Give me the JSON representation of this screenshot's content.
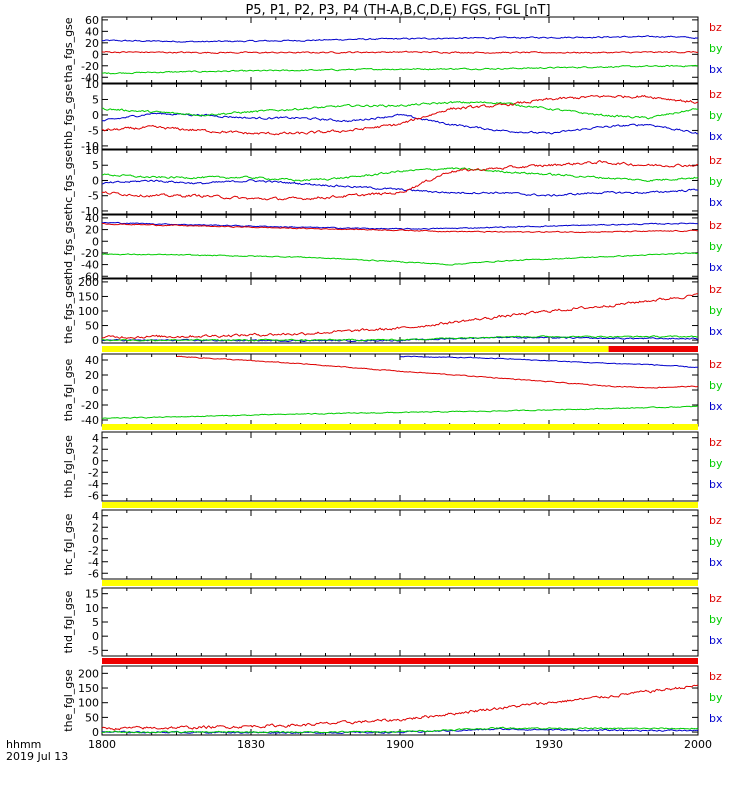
{
  "title": "P5, P1, P2, P3, P4 (TH-A,B,C,D,E) FGS, FGL [nT]",
  "time_axis": {
    "label_line1": "hhmm",
    "label_line2": "2019 Jul 13",
    "ticks": [
      "1800",
      "1830",
      "1900",
      "1930",
      "2000"
    ],
    "range_minutes": [
      0,
      120
    ]
  },
  "legend_labels": [
    "bz",
    "by",
    "bx"
  ],
  "colors": {
    "bx": "#0000cc",
    "by": "#00cc00",
    "bz": "#dd0000",
    "flag_yellow": "#ffff00",
    "flag_red": "#ee0000",
    "axis": "#000000"
  },
  "chart_data": [
    {
      "type": "line",
      "ylabel": "tha_fgs_gse",
      "ylim": [
        -50,
        65
      ],
      "yticks": [
        "60",
        "40",
        "20",
        "0",
        "-20",
        "-40"
      ],
      "ytick_values": [
        60,
        40,
        20,
        0,
        -20,
        -40
      ],
      "series": [
        {
          "name": "bx",
          "noise": 1,
          "points": [
            [
              0,
              24
            ],
            [
              20,
              22
            ],
            [
              40,
              24
            ],
            [
              50,
              26
            ],
            [
              70,
              28
            ],
            [
              85,
              29
            ],
            [
              100,
              30
            ],
            [
              115,
              31
            ],
            [
              120,
              28
            ]
          ]
        },
        {
          "name": "by",
          "noise": 1,
          "points": [
            [
              0,
              -33
            ],
            [
              20,
              -30
            ],
            [
              40,
              -28
            ],
            [
              55,
              -26
            ],
            [
              80,
              -25
            ],
            [
              100,
              -22
            ],
            [
              120,
              -20
            ]
          ]
        },
        {
          "name": "bz",
          "noise": 1,
          "points": [
            [
              0,
              4
            ],
            [
              20,
              3
            ],
            [
              40,
              3
            ],
            [
              60,
              4
            ],
            [
              80,
              3
            ],
            [
              100,
              3
            ],
            [
              120,
              4
            ]
          ]
        }
      ]
    },
    {
      "type": "line",
      "ylabel": "thb_fgs_gse",
      "ylim": [
        -11,
        10
      ],
      "yticks": [
        "10",
        "5",
        "0",
        "-5",
        "-10"
      ],
      "ytick_values": [
        10,
        5,
        0,
        -5,
        -10
      ],
      "series": [
        {
          "name": "bx",
          "noise": 1.5,
          "points": [
            [
              0,
              -2
            ],
            [
              10,
              0.5
            ],
            [
              20,
              0
            ],
            [
              30,
              -1
            ],
            [
              40,
              -1
            ],
            [
              50,
              -2
            ],
            [
              60,
              0
            ],
            [
              70,
              -3
            ],
            [
              80,
              -5
            ],
            [
              90,
              -6
            ],
            [
              100,
              -4
            ],
            [
              110,
              -3
            ],
            [
              120,
              -6
            ]
          ]
        },
        {
          "name": "by",
          "noise": 1.5,
          "points": [
            [
              0,
              2
            ],
            [
              10,
              1
            ],
            [
              20,
              0
            ],
            [
              30,
              1
            ],
            [
              40,
              2
            ],
            [
              50,
              3
            ],
            [
              60,
              3
            ],
            [
              70,
              4
            ],
            [
              80,
              4
            ],
            [
              90,
              2
            ],
            [
              100,
              0
            ],
            [
              110,
              -1
            ],
            [
              120,
              2
            ]
          ]
        },
        {
          "name": "bz",
          "noise": 2,
          "points": [
            [
              0,
              -5
            ],
            [
              10,
              -4
            ],
            [
              20,
              -5
            ],
            [
              30,
              -6
            ],
            [
              40,
              -6
            ],
            [
              50,
              -5
            ],
            [
              60,
              -3
            ],
            [
              70,
              2
            ],
            [
              80,
              3
            ],
            [
              90,
              5
            ],
            [
              100,
              6
            ],
            [
              110,
              6
            ],
            [
              120,
              4
            ]
          ]
        }
      ]
    },
    {
      "type": "line",
      "ylabel": "thc_fgs_gse",
      "ylim": [
        -11,
        10
      ],
      "yticks": [
        "10",
        "5",
        "0",
        "-5",
        "-10"
      ],
      "ytick_values": [
        10,
        5,
        0,
        -5,
        -10
      ],
      "series": [
        {
          "name": "bx",
          "noise": 1.5,
          "points": [
            [
              0,
              -1
            ],
            [
              10,
              0
            ],
            [
              20,
              -1
            ],
            [
              30,
              0
            ],
            [
              40,
              -1
            ],
            [
              50,
              -2
            ],
            [
              60,
              -3
            ],
            [
              70,
              -4
            ],
            [
              80,
              -4
            ],
            [
              90,
              -5
            ],
            [
              100,
              -4
            ],
            [
              110,
              -4
            ],
            [
              120,
              -3
            ]
          ]
        },
        {
          "name": "by",
          "noise": 1.5,
          "points": [
            [
              0,
              2
            ],
            [
              10,
              1
            ],
            [
              20,
              1
            ],
            [
              30,
              1
            ],
            [
              40,
              0
            ],
            [
              50,
              1
            ],
            [
              60,
              3
            ],
            [
              70,
              4
            ],
            [
              80,
              3
            ],
            [
              90,
              2
            ],
            [
              100,
              1
            ],
            [
              110,
              0
            ],
            [
              120,
              1
            ]
          ]
        },
        {
          "name": "bz",
          "noise": 2,
          "points": [
            [
              0,
              -4
            ],
            [
              10,
              -5
            ],
            [
              20,
              -5
            ],
            [
              30,
              -6
            ],
            [
              40,
              -6
            ],
            [
              50,
              -5
            ],
            [
              60,
              -4
            ],
            [
              70,
              3
            ],
            [
              80,
              4
            ],
            [
              90,
              5
            ],
            [
              100,
              6
            ],
            [
              110,
              5
            ],
            [
              120,
              5
            ]
          ]
        }
      ]
    },
    {
      "type": "line",
      "ylabel": "thd_fgs_gse",
      "ylim": [
        -63,
        45
      ],
      "yticks": [
        "40",
        "20",
        "0",
        "-20",
        "-40",
        "-60"
      ],
      "ytick_values": [
        40,
        20,
        0,
        -20,
        -40,
        -60
      ],
      "series": [
        {
          "name": "bx",
          "noise": 0.8,
          "points": [
            [
              0,
              32
            ],
            [
              20,
              28
            ],
            [
              40,
              24
            ],
            [
              60,
              21
            ],
            [
              70,
              22
            ],
            [
              80,
              24
            ],
            [
              100,
              28
            ],
            [
              120,
              31
            ]
          ]
        },
        {
          "name": "by",
          "noise": 0.8,
          "points": [
            [
              0,
              -22
            ],
            [
              20,
              -24
            ],
            [
              40,
              -27
            ],
            [
              60,
              -35
            ],
            [
              70,
              -40
            ],
            [
              80,
              -34
            ],
            [
              100,
              -27
            ],
            [
              120,
              -20
            ]
          ]
        },
        {
          "name": "bz",
          "noise": 0.8,
          "points": [
            [
              0,
              30
            ],
            [
              20,
              26
            ],
            [
              40,
              22
            ],
            [
              60,
              19
            ],
            [
              70,
              17
            ],
            [
              80,
              16
            ],
            [
              100,
              16
            ],
            [
              120,
              18
            ]
          ]
        }
      ]
    },
    {
      "type": "line",
      "ylabel": "the_fgs_gse",
      "ylim": [
        -10,
        210
      ],
      "yticks": [
        "200",
        "150",
        "100",
        "50",
        "0"
      ],
      "ytick_values": [
        200,
        150,
        100,
        50,
        0
      ],
      "series": [
        {
          "name": "bx",
          "noise": 1,
          "points": [
            [
              0,
              0
            ],
            [
              40,
              -2
            ],
            [
              60,
              -1
            ],
            [
              80,
              10
            ],
            [
              100,
              6
            ],
            [
              120,
              5
            ]
          ]
        },
        {
          "name": "by",
          "noise": 1,
          "points": [
            [
              0,
              0
            ],
            [
              40,
              0
            ],
            [
              60,
              1
            ],
            [
              80,
              12
            ],
            [
              100,
              12
            ],
            [
              120,
              12
            ]
          ]
        },
        {
          "name": "bz",
          "noise": 2,
          "points": [
            [
              0,
              10
            ],
            [
              20,
              14
            ],
            [
              40,
              22
            ],
            [
              60,
              40
            ],
            [
              70,
              60
            ],
            [
              80,
              80
            ],
            [
              90,
              100
            ],
            [
              100,
              115
            ],
            [
              110,
              135
            ],
            [
              120,
              155
            ]
          ]
        }
      ]
    },
    {
      "type": "line",
      "ylabel": "tha_fgl_gse",
      "ylim": [
        -48,
        48
      ],
      "yticks": [
        "40",
        "20",
        "0",
        "-20",
        "-40"
      ],
      "ytick_values": [
        40,
        20,
        0,
        -20,
        -40
      ],
      "flag": {
        "segments": [
          {
            "start": 0,
            "end": 102,
            "color": "yellow"
          },
          {
            "start": 102,
            "end": 120,
            "color": "red"
          }
        ]
      },
      "series": [
        {
          "name": "bx",
          "noise": 0.6,
          "points": [
            [
              60,
              45
            ],
            [
              80,
              42
            ],
            [
              100,
              36
            ],
            [
              110,
              34
            ],
            [
              120,
              30
            ]
          ]
        },
        {
          "name": "by",
          "noise": 0.6,
          "points": [
            [
              0,
              -38
            ],
            [
              20,
              -35
            ],
            [
              40,
              -32
            ],
            [
              60,
              -30
            ],
            [
              80,
              -28
            ],
            [
              100,
              -25
            ],
            [
              120,
              -22
            ]
          ]
        },
        {
          "name": "bz",
          "noise": 0.6,
          "points": [
            [
              15,
              45
            ],
            [
              40,
              35
            ],
            [
              60,
              25
            ],
            [
              80,
              16
            ],
            [
              100,
              6
            ],
            [
              110,
              3
            ],
            [
              120,
              5
            ]
          ]
        }
      ]
    },
    {
      "type": "line",
      "ylabel": "thb_fgl_gse",
      "ylim": [
        -7,
        5
      ],
      "yticks": [
        "4",
        "2",
        "0",
        "-2",
        "-4",
        "-6"
      ],
      "ytick_values": [
        4,
        2,
        0,
        -2,
        -4,
        -6
      ],
      "flag": {
        "segments": [
          {
            "start": 0,
            "end": 120,
            "color": "yellow"
          }
        ]
      },
      "series": []
    },
    {
      "type": "line",
      "ylabel": "thc_fgl_gse",
      "ylim": [
        -7,
        5
      ],
      "yticks": [
        "4",
        "2",
        "0",
        "-2",
        "-4",
        "-6"
      ],
      "ytick_values": [
        4,
        2,
        0,
        -2,
        -4,
        -6
      ],
      "flag": {
        "segments": [
          {
            "start": 0,
            "end": 120,
            "color": "yellow"
          }
        ]
      },
      "series": []
    },
    {
      "type": "line",
      "ylabel": "thd_fgl_gse",
      "ylim": [
        -7,
        17
      ],
      "yticks": [
        "15",
        "10",
        "5",
        "0",
        "-5"
      ],
      "ytick_values": [
        15,
        10,
        5,
        0,
        -5
      ],
      "flag": {
        "segments": [
          {
            "start": 0,
            "end": 120,
            "color": "yellow"
          }
        ]
      },
      "series": []
    },
    {
      "type": "line",
      "ylabel": "the_fgl_gse",
      "ylim": [
        -10,
        225
      ],
      "yticks": [
        "200",
        "150",
        "100",
        "50",
        "0"
      ],
      "ytick_values": [
        200,
        150,
        100,
        50,
        0
      ],
      "flag": {
        "segments": [
          {
            "start": 0,
            "end": 120,
            "color": "red"
          }
        ]
      },
      "series": [
        {
          "name": "bx",
          "noise": 1,
          "points": [
            [
              0,
              0
            ],
            [
              40,
              -2
            ],
            [
              60,
              -1
            ],
            [
              80,
              10
            ],
            [
              100,
              6
            ],
            [
              120,
              5
            ]
          ]
        },
        {
          "name": "by",
          "noise": 1,
          "points": [
            [
              0,
              0
            ],
            [
              40,
              0
            ],
            [
              60,
              1
            ],
            [
              80,
              14
            ],
            [
              100,
              12
            ],
            [
              120,
              12
            ]
          ]
        },
        {
          "name": "bz",
          "noise": 2,
          "points": [
            [
              0,
              12
            ],
            [
              20,
              16
            ],
            [
              40,
              24
            ],
            [
              60,
              42
            ],
            [
              70,
              62
            ],
            [
              80,
              82
            ],
            [
              90,
              100
            ],
            [
              100,
              118
            ],
            [
              110,
              138
            ],
            [
              120,
              158
            ]
          ]
        }
      ]
    }
  ]
}
